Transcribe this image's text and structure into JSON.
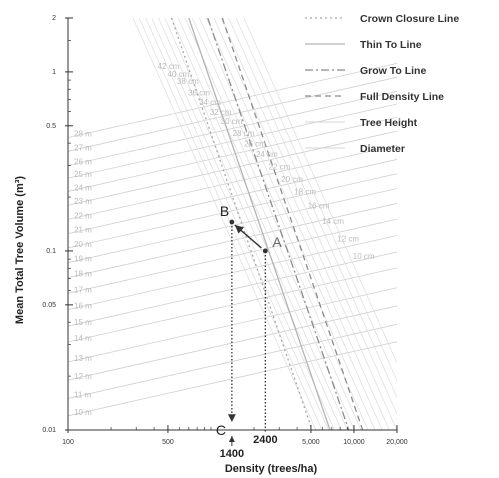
{
  "chart_data": {
    "type": "line",
    "x_scale": "log",
    "y_scale": "log",
    "xlim": [
      100,
      20000
    ],
    "ylim": [
      0.01,
      2
    ],
    "xlabel": "Density (trees/ha)",
    "ylabel": "Mean Total Tree Volume (m³)",
    "x_ticks": [
      {
        "value": 100,
        "label": "100"
      },
      {
        "value": 500,
        "label": "500"
      },
      {
        "value": 5000,
        "label": "5,000"
      },
      {
        "value": 10000,
        "label": "10,000"
      },
      {
        "value": 20000,
        "label": "20,000"
      }
    ],
    "y_ticks": [
      {
        "value": 2,
        "label": "2"
      },
      {
        "value": 1,
        "label": "1"
      },
      {
        "value": 0.5,
        "label": "0.5"
      },
      {
        "value": 0.1,
        "label": "0.1"
      },
      {
        "value": 0.05,
        "label": "0.05"
      },
      {
        "value": 0.01,
        "label": "0.01"
      }
    ],
    "legend": [
      {
        "name": "Crown Closure Line",
        "style": "dotted",
        "color": "#a8a8a8"
      },
      {
        "name": "Thin To Line",
        "style": "solid",
        "color": "#b4b4b4"
      },
      {
        "name": "Grow To Line",
        "style": "dashdot",
        "color": "#8c8c8c"
      },
      {
        "name": "Full Density Line",
        "style": "dashed",
        "color": "#8c8c8c"
      },
      {
        "name": "Tree Height",
        "style": "solid-thin",
        "color": "#c8c8c8"
      },
      {
        "name": "Diameter",
        "style": "solid-thin",
        "color": "#c8c8c8"
      }
    ],
    "legend_position": "top-right",
    "boundary_lines": [
      {
        "name": "Crown Closure Line",
        "x": [
          530,
          5100
        ],
        "y": [
          2,
          0.01
        ]
      },
      {
        "name": "Thin To Line",
        "x": [
          700,
          6800
        ],
        "y": [
          2,
          0.01
        ]
      },
      {
        "name": "Grow To Line",
        "x": [
          950,
          9200
        ],
        "y": [
          2,
          0.01
        ]
      },
      {
        "name": "Full Density Line",
        "x": [
          1200,
          11500
        ],
        "y": [
          2,
          0.01
        ]
      }
    ],
    "height_lines": {
      "labels": [
        "10 m",
        "11 m",
        "12 m",
        "13 m",
        "14 m",
        "15 m",
        "16 m",
        "17 m",
        "18 m",
        "19 m",
        "20 m",
        "21 m",
        "22 m",
        "23 m",
        "24 m",
        "25 m",
        "26 m",
        "27 m",
        "28 m"
      ],
      "y_at_100": [
        0.012,
        0.015,
        0.019,
        0.024,
        0.031,
        0.038,
        0.047,
        0.058,
        0.071,
        0.086,
        0.104,
        0.125,
        0.15,
        0.18,
        0.215,
        0.255,
        0.3,
        0.36,
        0.43
      ],
      "slope": 0.18
    },
    "diameter_lines": {
      "labels": [
        "10 cm",
        "12 cm",
        "14 cm",
        "16 cm",
        "18 cm",
        "20 cm",
        "22 cm",
        "24 cm",
        "26 cm",
        "28 cm",
        "30 cm",
        "32 cm",
        "34 cm",
        "36 cm",
        "38 cm",
        "40 cm",
        "42 cm"
      ],
      "x_at_top": [
        1700,
        1500,
        1330,
        1180,
        1050,
        930,
        830,
        740,
        660,
        590,
        530,
        475,
        430,
        385,
        350,
        315,
        285
      ],
      "y_at_top": 2,
      "x_label_values": [
        9500,
        7400,
        5800,
        4600,
        3700,
        3000,
        2450,
        2000,
        1650,
        1370,
        1130,
        950,
        800,
        670,
        560,
        480,
        410
      ],
      "slope": -1.8
    },
    "points": [
      {
        "label": "A",
        "x": 2400,
        "y": 0.1
      },
      {
        "label": "B",
        "x": 1400,
        "y": 0.145
      },
      {
        "label": "C",
        "x": 1400,
        "y": 0.01
      }
    ],
    "arrows": [
      {
        "from": "A",
        "to": "B"
      },
      {
        "from": "B",
        "to": "C"
      },
      {
        "from": "A",
        "to": "density-2400"
      }
    ],
    "density_markers": [
      {
        "value": 1400,
        "label": "1400"
      },
      {
        "value": 2400,
        "label": "2400"
      }
    ]
  }
}
